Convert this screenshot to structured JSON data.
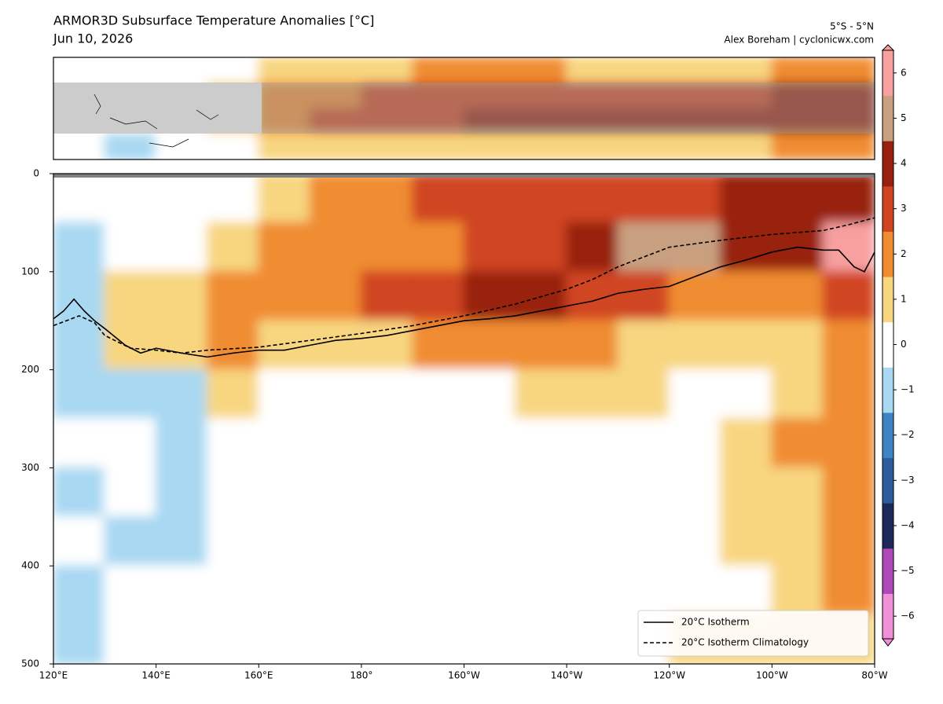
{
  "chart_data": {
    "type": "depth-section",
    "title": "ARMOR3D Subsurface Temperature Anomalies [°C]",
    "subtitle": "Jun 10, 2026",
    "region": "5°S - 5°N",
    "credit": "Alex Boreham | cyclonicwx.com",
    "xlim": [
      120,
      280
    ],
    "xticks": [
      {
        "value": 120,
        "label": "120°E"
      },
      {
        "value": 140,
        "label": "140°E"
      },
      {
        "value": 160,
        "label": "160°E"
      },
      {
        "value": 180,
        "label": "180°"
      },
      {
        "value": 200,
        "label": "160°W"
      },
      {
        "value": 220,
        "label": "140°W"
      },
      {
        "value": 240,
        "label": "120°W"
      },
      {
        "value": 260,
        "label": "100°W"
      },
      {
        "value": 280,
        "label": "80°W"
      }
    ],
    "ylim": [
      500,
      0
    ],
    "yticks": [
      0,
      100,
      200,
      300,
      400,
      500
    ],
    "field": {
      "x": [
        125,
        135,
        145,
        155,
        165,
        175,
        185,
        195,
        205,
        215,
        225,
        235,
        245,
        255,
        265,
        275
      ],
      "y": [
        25,
        75,
        125,
        175,
        225,
        275,
        325,
        375,
        425,
        475
      ],
      "values": [
        [
          0,
          0,
          0,
          0,
          1,
          1.5,
          2,
          2.5,
          2.5,
          2.5,
          3,
          3,
          3,
          3.5,
          4,
          4
        ],
        [
          -1,
          0,
          0,
          0.5,
          1.5,
          2,
          2,
          2,
          2.5,
          3,
          4,
          4.5,
          4.5,
          3.5,
          3.5,
          5.5
        ],
        [
          -1.5,
          0.5,
          1,
          1.5,
          2,
          2,
          2.5,
          3,
          3.5,
          3.5,
          3,
          3,
          2,
          1.5,
          1.5,
          3
        ],
        [
          -1.5,
          0.5,
          0.5,
          1.5,
          1,
          1,
          1,
          1.5,
          2,
          2,
          1.5,
          1,
          0.5,
          0.5,
          0.5,
          2
        ],
        [
          -1,
          -1,
          -1,
          0.5,
          0,
          0,
          0,
          0,
          0,
          0.5,
          1,
          0.5,
          0,
          0,
          1,
          1.5
        ],
        [
          -0.5,
          -0.5,
          -1.5,
          0,
          0,
          0,
          0,
          0,
          0,
          0,
          0,
          0,
          0,
          1,
          1.5,
          2
        ],
        [
          -1,
          -0.5,
          -1.5,
          0,
          0,
          0,
          0,
          0,
          0,
          0,
          0,
          0,
          0,
          1,
          1,
          2
        ],
        [
          -0.5,
          -1,
          -1,
          0,
          0,
          0,
          0,
          0,
          0,
          0,
          0,
          0,
          0,
          0.5,
          1,
          2
        ],
        [
          -1,
          -0.5,
          -0.5,
          0,
          0,
          0,
          0,
          0,
          0,
          0,
          0,
          0,
          0,
          0,
          1,
          1.5
        ],
        [
          -1,
          0,
          -0.5,
          0,
          0,
          0,
          0,
          0,
          0,
          0,
          0,
          0,
          0.5,
          0.5,
          0.5,
          1
        ]
      ]
    },
    "map": {
      "lat": [
        15,
        5,
        -5,
        -15
      ],
      "lon": [
        125,
        135,
        145,
        155,
        165,
        175,
        185,
        195,
        205,
        215,
        225,
        235,
        245,
        255,
        265,
        275
      ],
      "values": [
        [
          0,
          0,
          0,
          0,
          1,
          1,
          1,
          1.5,
          1.5,
          1.5,
          1,
          1,
          1,
          1,
          1.5,
          2
        ],
        [
          0,
          0,
          0,
          1,
          2,
          2,
          2.5,
          3,
          3,
          3,
          3,
          3,
          3,
          3,
          3.5,
          4
        ],
        [
          0,
          0,
          0,
          1,
          2,
          2.5,
          3,
          3,
          3.5,
          3.5,
          3.5,
          3.5,
          3.5,
          3.5,
          3.5,
          4
        ],
        [
          0,
          -1,
          0,
          0,
          1,
          1,
          1,
          1,
          1,
          0.5,
          1,
          1,
          1,
          1,
          1.5,
          2
        ]
      ]
    },
    "series": [
      {
        "name": "20°C Isotherm",
        "color": "#000000",
        "dash": false,
        "x": [
          120,
          122,
          124,
          126,
          128,
          130,
          134,
          137,
          140,
          145,
          150,
          155,
          160,
          165,
          170,
          175,
          180,
          185,
          190,
          195,
          200,
          205,
          210,
          215,
          220,
          225,
          230,
          235,
          240,
          245,
          250,
          255,
          260,
          265,
          270,
          273,
          276,
          278,
          280
        ],
        "values": [
          148,
          140,
          128,
          140,
          150,
          158,
          175,
          183,
          178,
          183,
          187,
          183,
          180,
          180,
          175,
          170,
          168,
          165,
          160,
          155,
          150,
          148,
          145,
          140,
          135,
          130,
          122,
          118,
          115,
          105,
          95,
          88,
          80,
          75,
          78,
          78,
          95,
          100,
          80
        ]
      },
      {
        "name": "20°C Isotherm Climatology",
        "color": "#000000",
        "dash": true,
        "x": [
          120,
          125,
          128,
          130,
          135,
          140,
          145,
          150,
          160,
          170,
          180,
          190,
          200,
          210,
          220,
          225,
          230,
          235,
          240,
          250,
          260,
          270,
          275,
          280
        ],
        "values": [
          155,
          145,
          152,
          165,
          178,
          180,
          183,
          180,
          177,
          170,
          163,
          155,
          145,
          133,
          118,
          108,
          95,
          85,
          75,
          68,
          62,
          58,
          52,
          45
        ]
      }
    ],
    "legend": "lower right",
    "colorbar": {
      "clim": [
        -6.5,
        6.5
      ],
      "colors": [
        "#f090d8",
        "#b048b8",
        "#1c2858",
        "#2c5c9c",
        "#3c84c4",
        "#a8d8f2",
        "#ffffff",
        "#f8d680",
        "#f08c30",
        "#d04420",
        "#982010",
        "#c8a080",
        "#f8a0a0"
      ],
      "ticks": [
        {
          "value": -6,
          "label": "−6"
        },
        {
          "value": -5,
          "label": "−5"
        },
        {
          "value": -4,
          "label": "−4"
        },
        {
          "value": -3,
          "label": "−3"
        },
        {
          "value": -2,
          "label": "−2"
        },
        {
          "value": -1,
          "label": "−1"
        },
        0,
        1,
        2,
        3,
        4,
        5,
        6
      ]
    }
  }
}
